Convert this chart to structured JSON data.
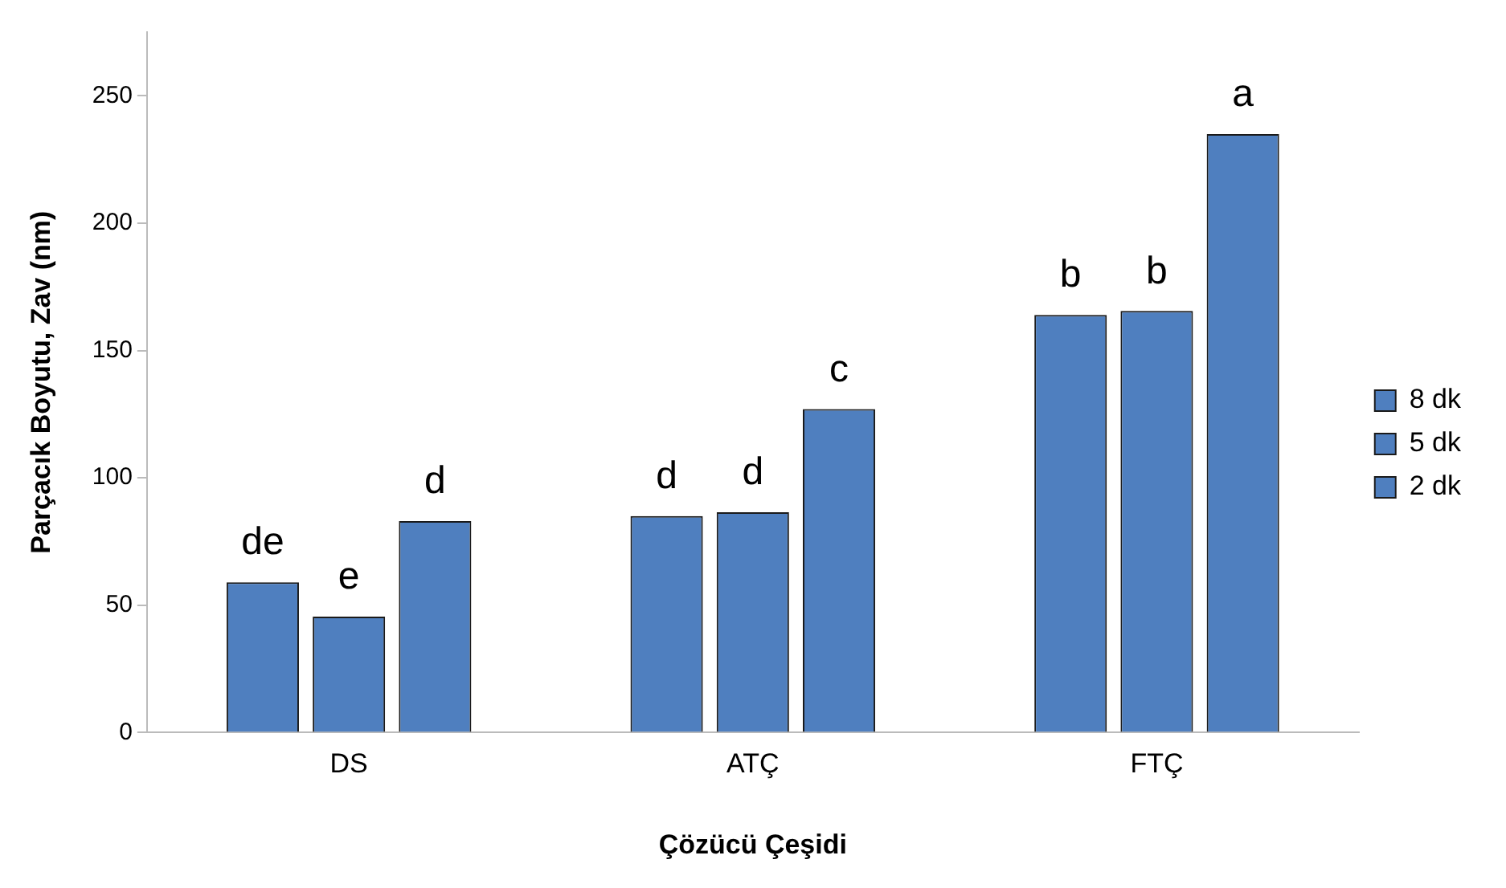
{
  "chart_data": {
    "type": "bar",
    "xlabel": "Çözücü Çeşidi",
    "ylabel": "Parçacık Boyutu, Zav (nm)",
    "categories": [
      "DS",
      "ATÇ",
      "FTÇ"
    ],
    "series": [
      {
        "name": "8 dk",
        "color": "#4f7fbf",
        "values": [
          59,
          85,
          164
        ],
        "value_labels": [
          "de",
          "d",
          "b"
        ]
      },
      {
        "name": "5 dk",
        "color": "#4f7fbf",
        "values": [
          45.5,
          86.5,
          165.5
        ],
        "value_labels": [
          "e",
          "d",
          "b"
        ]
      },
      {
        "name": "2 dk",
        "color": "#4f7fbf",
        "values": [
          83,
          127,
          235
        ],
        "value_labels": [
          "d",
          "c",
          "a"
        ]
      }
    ],
    "ylim": [
      0,
      275
    ],
    "yticks": [
      0,
      50,
      100,
      150,
      200,
      250
    ],
    "grid": false,
    "legend": "right"
  }
}
